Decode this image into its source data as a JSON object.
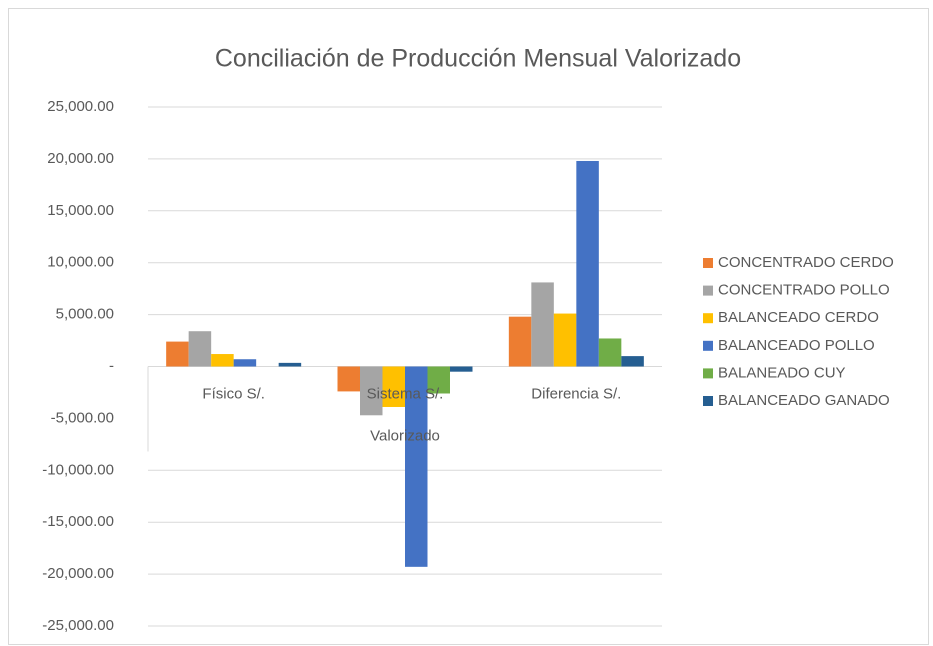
{
  "chart_data": {
    "type": "bar",
    "title": "Conciliación de Producción Mensual Valorizado",
    "x_label": "Valorizado",
    "categories": [
      "Físico S/.",
      "Sistema S/.",
      "Diferencia S/."
    ],
    "series": [
      {
        "name": "CONCENTRADO CERDO",
        "color": "#ed7d31",
        "values": [
          2400,
          -2400,
          4800
        ]
      },
      {
        "name": "CONCENTRADO POLLO",
        "color": "#a5a5a5",
        "values": [
          3400,
          -4700,
          8100
        ]
      },
      {
        "name": "BALANCEADO CERDO",
        "color": "#ffc000",
        "values": [
          1200,
          -3900,
          5100
        ]
      },
      {
        "name": "BALANCEADO POLLO",
        "color": "#4472c4",
        "values": [
          700,
          -19300,
          19800
        ]
      },
      {
        "name": "BALANEADO CUY",
        "color": "#70ad47",
        "values": [
          0,
          -2600,
          2700
        ]
      },
      {
        "name": "BALANCEADO GANADO",
        "color": "#255e91",
        "values": [
          350,
          -500,
          1000
        ]
      }
    ],
    "ylim": [
      -25000,
      25000
    ],
    "yticks": [
      {
        "value": -25000,
        "label": "-25,000.00"
      },
      {
        "value": -20000,
        "label": "-20,000.00"
      },
      {
        "value": -15000,
        "label": "-15,000.00"
      },
      {
        "value": -10000,
        "label": "-10,000.00"
      },
      {
        "value": -5000,
        "label": "-5,000.00"
      },
      {
        "value": 0,
        "label": "-"
      },
      {
        "value": 5000,
        "label": "5,000.00"
      },
      {
        "value": 10000,
        "label": "10,000.00"
      },
      {
        "value": 15000,
        "label": "15,000.00"
      },
      {
        "value": 20000,
        "label": "20,000.00"
      },
      {
        "value": 25000,
        "label": "25,000.00"
      }
    ],
    "grid": true,
    "legend": "right"
  }
}
